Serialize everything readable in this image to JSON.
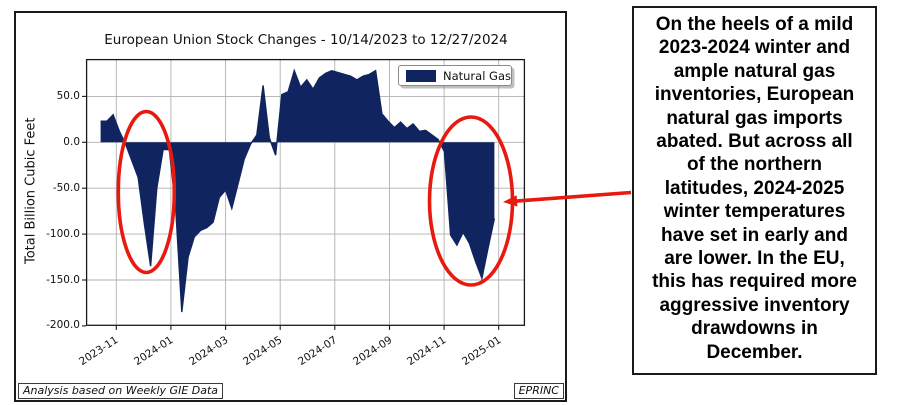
{
  "figure": {
    "title": "European Union Stock Changes - 10/14/2023 to 12/27/2024",
    "ylabel": "Total Billion Cubic Feet",
    "legend_label": "Natural Gas",
    "source_note": "Analysis based on Weekly GIE Data",
    "org_label": "EPRINC"
  },
  "chart_data": {
    "type": "area",
    "title": "European Union Stock Changes - 10/14/2023 to 12/27/2024",
    "xlabel": "",
    "ylabel": "Total Billion Cubic Feet",
    "units": "billion cubic feet per week",
    "legend": {
      "entries": [
        "Natural Gas"
      ],
      "position": "upper right"
    },
    "grid": true,
    "ylim": [
      -200,
      90
    ],
    "y_ticks": [
      "50.0",
      "0.0",
      "-50.0",
      "-100.0",
      "-150.0",
      "-200.0"
    ],
    "y_tick_values": [
      50,
      0,
      -50,
      -100,
      -150,
      -200
    ],
    "x_ticks": [
      "2023-11",
      "2024-01",
      "2024-03",
      "2024-05",
      "2024-07",
      "2024-09",
      "2024-11",
      "2025-01"
    ],
    "series": [
      {
        "name": "Natural Gas",
        "color": "#102560",
        "x": [
          "2023-10-14",
          "2023-10-21",
          "2023-10-28",
          "2023-11-04",
          "2023-11-11",
          "2023-11-18",
          "2023-11-25",
          "2023-12-02",
          "2023-12-09",
          "2023-12-16",
          "2023-12-23",
          "2023-12-30",
          "2024-01-06",
          "2024-01-13",
          "2024-01-20",
          "2024-01-27",
          "2024-02-03",
          "2024-02-10",
          "2024-02-17",
          "2024-02-24",
          "2024-03-02",
          "2024-03-09",
          "2024-03-16",
          "2024-03-23",
          "2024-03-30",
          "2024-04-06",
          "2024-04-13",
          "2024-04-20",
          "2024-04-27",
          "2024-05-04",
          "2024-05-11",
          "2024-05-18",
          "2024-05-25",
          "2024-06-01",
          "2024-06-08",
          "2024-06-15",
          "2024-06-22",
          "2024-06-29",
          "2024-07-06",
          "2024-07-13",
          "2024-07-20",
          "2024-07-27",
          "2024-08-03",
          "2024-08-10",
          "2024-08-17",
          "2024-08-24",
          "2024-08-31",
          "2024-09-07",
          "2024-09-14",
          "2024-09-21",
          "2024-09-28",
          "2024-10-05",
          "2024-10-12",
          "2024-10-19",
          "2024-10-26",
          "2024-11-02",
          "2024-11-09",
          "2024-11-16",
          "2024-11-23",
          "2024-11-30",
          "2024-12-07",
          "2024-12-14",
          "2024-12-21",
          "2024-12-27"
        ],
        "values": [
          23,
          23,
          30,
          12,
          -2,
          -20,
          -38,
          -89,
          -135,
          -50,
          -8,
          -8,
          -70,
          -185,
          -125,
          -103,
          -96,
          -93,
          -87,
          -60,
          -52,
          -72,
          -45,
          -18,
          -2,
          8,
          62,
          5,
          -14,
          52,
          55,
          78,
          60,
          68,
          58,
          70,
          75,
          78,
          76,
          74,
          72,
          68,
          72,
          74,
          78,
          31,
          23,
          16,
          22,
          15,
          20,
          12,
          13,
          8,
          3,
          -10,
          -101,
          -112,
          -98,
          -110,
          -130,
          -148,
          -115,
          -83
        ]
      }
    ]
  },
  "annotations": {
    "ellipse_1": "circles December 2023 inventory drawdown dip",
    "ellipse_2": "circles December 2024 inventory drawdown dip",
    "arrow": "points from note box to the 2024-2025 winter drawdown"
  },
  "note_box": {
    "lines": [
      "On the heels of a mild",
      "2023-2024 winter and",
      "ample natural gas",
      "inventories, European",
      "natural gas imports",
      "abated. But across all",
      "of the northern",
      "latitudes, 2024-2025",
      "winter temperatures",
      "have set in early and",
      "are lower. In the EU,",
      "this has required more",
      "aggressive inventory",
      "drawdowns in",
      "December."
    ]
  },
  "colors": {
    "series_fill": "#102560",
    "annotation_red": "#e8190f",
    "gridline": "#b0b0b0",
    "axis": "#1a1a1a"
  }
}
